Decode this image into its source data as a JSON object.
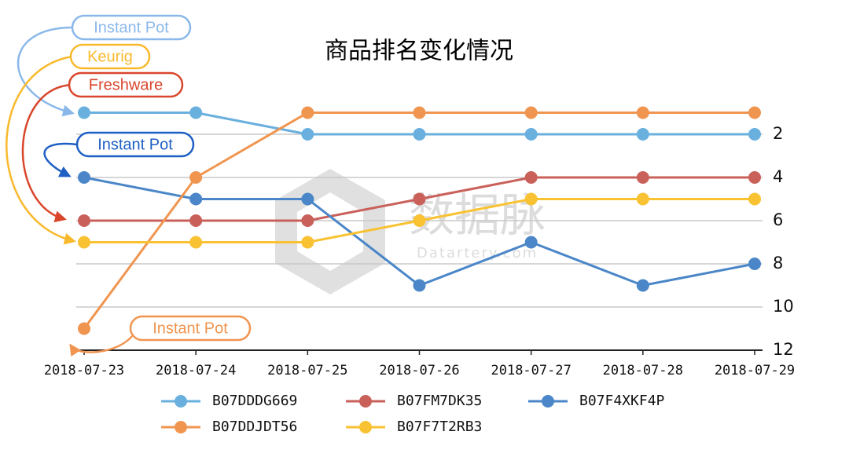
{
  "chart_data": {
    "type": "line",
    "title": "商品排名变化情况",
    "categories": [
      "2018-07-23",
      "2018-07-24",
      "2018-07-25",
      "2018-07-26",
      "2018-07-27",
      "2018-07-28",
      "2018-07-29"
    ],
    "series": [
      {
        "name": "B07DDDG669",
        "color": "#6ab0de",
        "values": [
          1,
          1,
          2,
          2,
          2,
          2,
          2
        ]
      },
      {
        "name": "B07FM7DK35",
        "color": "#c9605a",
        "values": [
          6,
          6,
          6,
          5,
          4,
          4,
          4
        ]
      },
      {
        "name": "B07F4XKF4P",
        "color": "#4a86c8",
        "values": [
          4,
          5,
          5,
          9,
          7,
          9,
          8
        ]
      },
      {
        "name": "B07DDJDT56",
        "color": "#f0954f",
        "values": [
          11,
          4,
          1,
          1,
          1,
          1,
          1
        ]
      },
      {
        "name": "B07F7T2RB3",
        "color": "#f9c232",
        "values": [
          7,
          7,
          7,
          6,
          5,
          5,
          5
        ]
      }
    ],
    "ylim": [
      12,
      0
    ],
    "yticks": [
      2,
      4,
      6,
      8,
      10,
      12
    ],
    "y_axis_side": "right",
    "grid": true,
    "annotations": [
      {
        "text": "Instant Pot",
        "color": "#8ab8ea"
      },
      {
        "text": "Keurig",
        "color": "#f9b92c"
      },
      {
        "text": "Freshware",
        "color": "#d9462b"
      },
      {
        "text": "Instant Pot",
        "color": "#1e5fc4"
      },
      {
        "text": "Instant Pot",
        "color": "#f0954f"
      }
    ],
    "watermark": {
      "text": "数据脉",
      "subtext": "Datartery.com"
    }
  }
}
